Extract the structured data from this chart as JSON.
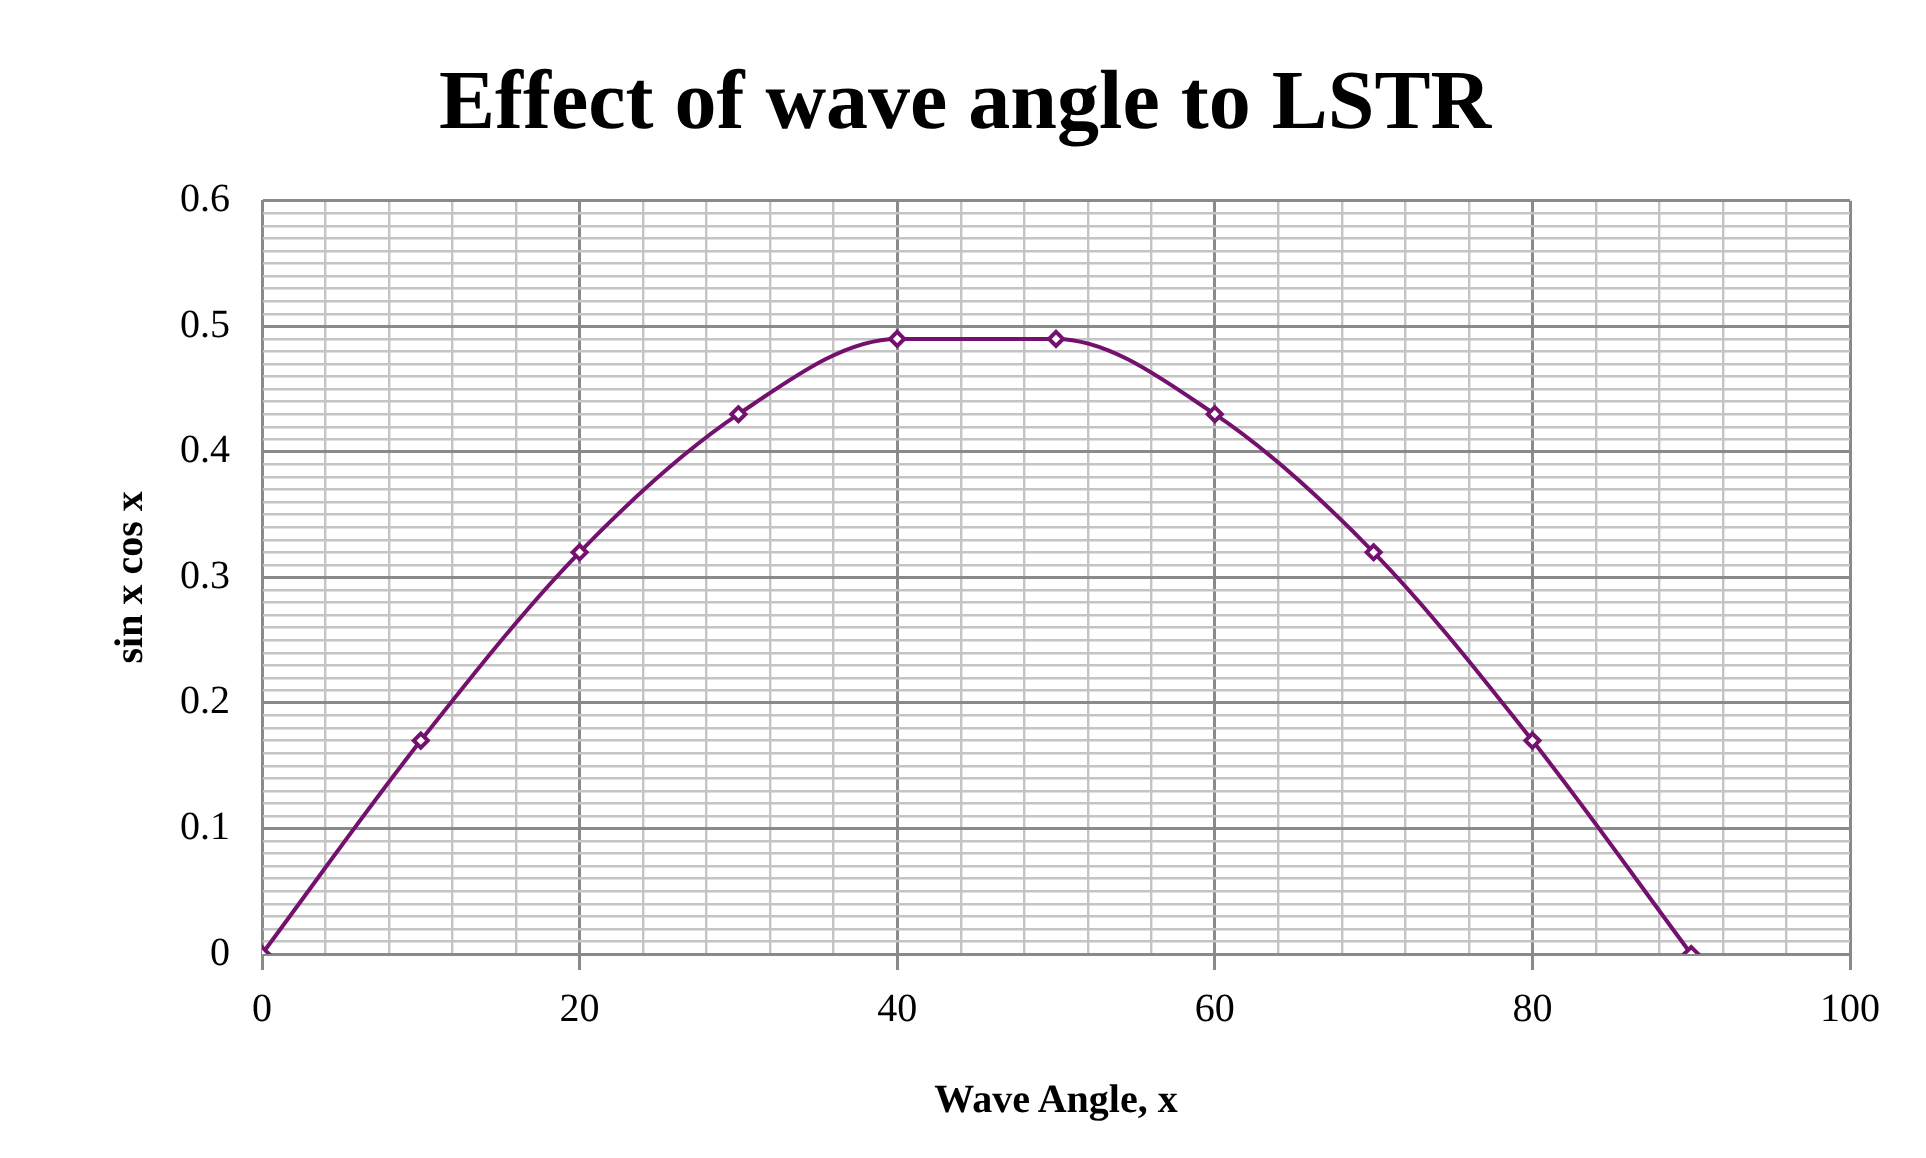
{
  "chart_data": {
    "type": "line",
    "title": "Effect of wave angle to LSTR",
    "xlabel": "Wave Angle, x",
    "ylabel": "sin x cos x",
    "x": [
      0,
      10,
      20,
      30,
      40,
      50,
      60,
      70,
      80,
      90
    ],
    "series": [
      {
        "color": "#74116e",
        "values": [
          0,
          0.17,
          0.32,
          0.43,
          0.49,
          0.49,
          0.43,
          0.32,
          0.17,
          0
        ]
      }
    ],
    "xlim": [
      0,
      100
    ],
    "ylim": [
      0,
      0.6
    ],
    "xticks": [
      0,
      {
        "value": 4,
        "label": null
      },
      {
        "value": 8,
        "label": null
      },
      {
        "value": 12,
        "label": null
      },
      {
        "value": 16,
        "label": null
      },
      20,
      {
        "value": 24,
        "label": null
      },
      {
        "value": 28,
        "label": null
      },
      {
        "value": 32,
        "label": null
      },
      {
        "value": 36,
        "label": null
      },
      40,
      {
        "value": 44,
        "label": null
      },
      {
        "value": 48,
        "label": null
      },
      {
        "value": 52,
        "label": null
      },
      {
        "value": 56,
        "label": null
      },
      60,
      {
        "value": 64,
        "label": null
      },
      {
        "value": 68,
        "label": null
      },
      {
        "value": 72,
        "label": null
      },
      {
        "value": 76,
        "label": null
      },
      80,
      {
        "value": 84,
        "label": null
      },
      {
        "value": 88,
        "label": null
      },
      {
        "value": 92,
        "label": null
      },
      {
        "value": 96,
        "label": null
      },
      100
    ],
    "yticks": [
      0,
      {
        "value": 0.01,
        "label": null
      },
      {
        "value": 0.02,
        "label": null
      },
      {
        "value": 0.03,
        "label": null
      },
      {
        "value": 0.04,
        "label": null
      },
      {
        "value": 0.05,
        "label": null
      },
      {
        "value": 0.06,
        "label": null
      },
      {
        "value": 0.07,
        "label": null
      },
      {
        "value": 0.08,
        "label": null
      },
      {
        "value": 0.09,
        "label": null
      },
      0.1,
      {
        "value": 0.11,
        "label": null
      },
      {
        "value": 0.12,
        "label": null
      },
      {
        "value": 0.13,
        "label": null
      },
      {
        "value": 0.14,
        "label": null
      },
      {
        "value": 0.15,
        "label": null
      },
      {
        "value": 0.16,
        "label": null
      },
      {
        "value": 0.17,
        "label": null
      },
      {
        "value": 0.18,
        "label": null
      },
      {
        "value": 0.19,
        "label": null
      },
      0.2,
      {
        "value": 0.21,
        "label": null
      },
      {
        "value": 0.22,
        "label": null
      },
      {
        "value": 0.23,
        "label": null
      },
      {
        "value": 0.24,
        "label": null
      },
      {
        "value": 0.25,
        "label": null
      },
      {
        "value": 0.26,
        "label": null
      },
      {
        "value": 0.27,
        "label": null
      },
      {
        "value": 0.28,
        "label": null
      },
      {
        "value": 0.29,
        "label": null
      },
      0.3,
      {
        "value": 0.31,
        "label": null
      },
      {
        "value": 0.32,
        "label": null
      },
      {
        "value": 0.33,
        "label": null
      },
      {
        "value": 0.34,
        "label": null
      },
      {
        "value": 0.35,
        "label": null
      },
      {
        "value": 0.36,
        "label": null
      },
      {
        "value": 0.37,
        "label": null
      },
      {
        "value": 0.38,
        "label": null
      },
      {
        "value": 0.39,
        "label": null
      },
      0.4,
      {
        "value": 0.41,
        "label": null
      },
      {
        "value": 0.42,
        "label": null
      },
      {
        "value": 0.43,
        "label": null
      },
      {
        "value": 0.44,
        "label": null
      },
      {
        "value": 0.45,
        "label": null
      },
      {
        "value": 0.46,
        "label": null
      },
      {
        "value": 0.47,
        "label": null
      },
      {
        "value": 0.48,
        "label": null
      },
      {
        "value": 0.49,
        "label": null
      },
      0.5,
      {
        "value": 0.51,
        "label": null
      },
      {
        "value": 0.52,
        "label": null
      },
      {
        "value": 0.53,
        "label": null
      },
      {
        "value": 0.54,
        "label": null
      },
      {
        "value": 0.55,
        "label": null
      },
      {
        "value": 0.56,
        "label": null
      },
      {
        "value": 0.57,
        "label": null
      },
      {
        "value": 0.58,
        "label": null
      },
      {
        "value": 0.59,
        "label": null
      },
      0.6
    ],
    "grid": true,
    "legend": false,
    "marker": "diamond",
    "line_style": "solid"
  }
}
